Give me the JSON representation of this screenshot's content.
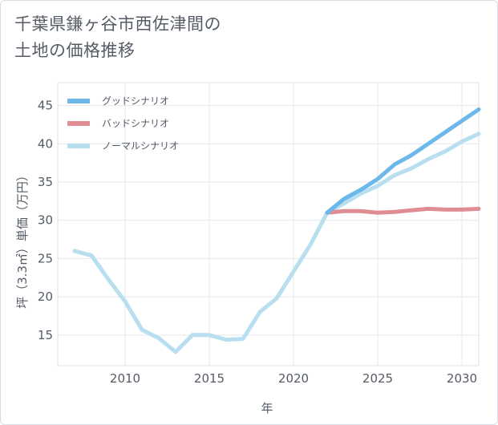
{
  "title": {
    "line1": "千葉県鎌ヶ谷市西佐津間の",
    "line2": "土地の価格推移"
  },
  "chart_data": {
    "type": "line",
    "title": "千葉県鎌ヶ谷市西佐津間の土地の価格推移",
    "xlabel": "年",
    "ylabel": "坪（3.3㎡）単価（万円）",
    "xlim": [
      2006,
      2031
    ],
    "ylim": [
      11,
      48
    ],
    "x_ticks": [
      2010,
      2015,
      2020,
      2025,
      2030
    ],
    "y_ticks": [
      15,
      20,
      25,
      30,
      35,
      40,
      45
    ],
    "grid": true,
    "legend_position": "top-left",
    "series": [
      {
        "name": "グッドシナリオ",
        "color": "#6cb8eb",
        "x": [
          2022,
          2023,
          2024,
          2025,
          2026,
          2027,
          2028,
          2029,
          2030,
          2031
        ],
        "values": [
          31.0,
          32.8,
          34.0,
          35.4,
          37.3,
          38.5,
          40.0,
          41.5,
          43.0,
          44.5
        ]
      },
      {
        "name": "バッドシナリオ",
        "color": "#df8c93",
        "x": [
          2022,
          2023,
          2024,
          2025,
          2026,
          2027,
          2028,
          2029,
          2030,
          2031
        ],
        "values": [
          31.0,
          31.2,
          31.2,
          31.0,
          31.1,
          31.3,
          31.5,
          31.4,
          31.4,
          31.5
        ]
      },
      {
        "name": "ノーマルシナリオ",
        "color": "#b8dfef",
        "x": [
          2007,
          2008,
          2009,
          2010,
          2011,
          2012,
          2013,
          2014,
          2015,
          2016,
          2017,
          2018,
          2019,
          2020,
          2021,
          2022,
          2023,
          2024,
          2025,
          2026,
          2027,
          2028,
          2029,
          2030,
          2031
        ],
        "values": [
          26.0,
          25.4,
          22.3,
          19.4,
          15.7,
          14.6,
          12.8,
          15.0,
          15.0,
          14.4,
          14.5,
          18.0,
          19.8,
          23.3,
          26.8,
          31.0,
          32.2,
          33.5,
          34.5,
          35.9,
          36.8,
          38.0,
          39.0,
          40.3,
          41.3
        ]
      }
    ]
  }
}
